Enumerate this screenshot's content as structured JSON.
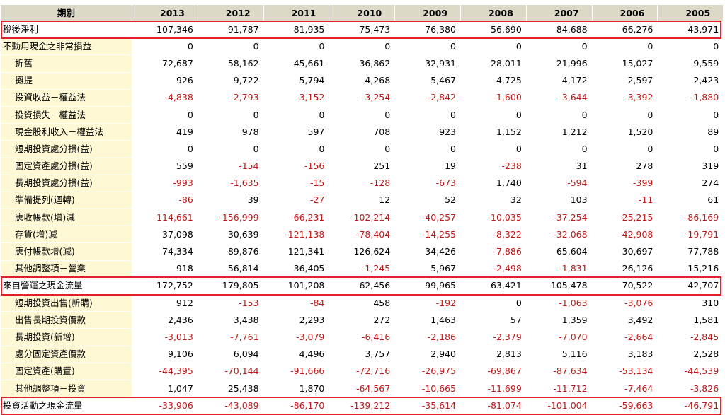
{
  "header": {
    "period_label": "期別",
    "years": [
      "2013",
      "2012",
      "2011",
      "2010",
      "2009",
      "2008",
      "2007",
      "2006",
      "2005"
    ]
  },
  "rows": [
    {
      "label": "稅後淨利",
      "level": "top",
      "highlight": true,
      "values": [
        "107,346",
        "91,787",
        "81,935",
        "75,473",
        "76,380",
        "56,690",
        "84,688",
        "66,276",
        "43,971"
      ]
    },
    {
      "label": "不動用現金之非常損益",
      "level": "top",
      "highlight": false,
      "values": [
        "0",
        "0",
        "0",
        "0",
        "0",
        "0",
        "0",
        "0",
        "0"
      ]
    },
    {
      "label": "折舊",
      "level": "sub",
      "highlight": false,
      "values": [
        "72,687",
        "58,162",
        "45,661",
        "36,862",
        "32,931",
        "28,011",
        "21,996",
        "15,027",
        "9,559"
      ]
    },
    {
      "label": "攤提",
      "level": "sub",
      "highlight": false,
      "values": [
        "926",
        "9,722",
        "5,794",
        "4,268",
        "5,467",
        "4,725",
        "4,172",
        "2,597",
        "2,423"
      ]
    },
    {
      "label": "投資收益－權益法",
      "level": "sub",
      "highlight": false,
      "values": [
        "-4,838",
        "-2,793",
        "-3,152",
        "-3,254",
        "-2,842",
        "-1,600",
        "-3,644",
        "-3,392",
        "-1,880"
      ]
    },
    {
      "label": "投資損失－權益法",
      "level": "sub",
      "highlight": false,
      "values": [
        "0",
        "0",
        "0",
        "0",
        "0",
        "0",
        "0",
        "0",
        "0"
      ]
    },
    {
      "label": "現金股利收入－權益法",
      "level": "sub",
      "highlight": false,
      "values": [
        "419",
        "978",
        "597",
        "708",
        "923",
        "1,152",
        "1,212",
        "1,520",
        "89"
      ]
    },
    {
      "label": "短期投資處分損(益)",
      "level": "sub",
      "highlight": false,
      "values": [
        "0",
        "0",
        "0",
        "0",
        "0",
        "0",
        "0",
        "0",
        "0"
      ]
    },
    {
      "label": "固定資產處分損(益)",
      "level": "sub",
      "highlight": false,
      "values": [
        "559",
        "-154",
        "-156",
        "251",
        "19",
        "-238",
        "31",
        "278",
        "319"
      ]
    },
    {
      "label": "長期投資處分損(益)",
      "level": "sub",
      "highlight": false,
      "values": [
        "-993",
        "-1,635",
        "-15",
        "-128",
        "-673",
        "1,740",
        "-594",
        "-399",
        "274"
      ]
    },
    {
      "label": "準備提列(迴轉)",
      "level": "sub",
      "highlight": false,
      "values": [
        "-86",
        "39",
        "-27",
        "12",
        "52",
        "32",
        "103",
        "-11",
        "61"
      ]
    },
    {
      "label": "應收帳款(增)減",
      "level": "sub",
      "highlight": false,
      "values": [
        "-114,661",
        "-156,999",
        "-66,231",
        "-102,214",
        "-40,257",
        "-10,035",
        "-37,254",
        "-25,215",
        "-86,169"
      ]
    },
    {
      "label": "存貨(增)減",
      "level": "sub",
      "highlight": false,
      "values": [
        "37,098",
        "30,639",
        "-121,138",
        "-78,404",
        "-14,255",
        "-8,322",
        "-32,068",
        "-42,908",
        "-19,791"
      ]
    },
    {
      "label": "應付帳款增(減)",
      "level": "sub",
      "highlight": false,
      "values": [
        "74,334",
        "89,876",
        "121,341",
        "126,624",
        "34,426",
        "-7,886",
        "65,604",
        "30,697",
        "77,788"
      ]
    },
    {
      "label": "其他調整項－營業",
      "level": "sub",
      "highlight": false,
      "values": [
        "918",
        "56,814",
        "36,405",
        "-1,245",
        "5,967",
        "-2,498",
        "-1,831",
        "26,126",
        "15,216"
      ]
    },
    {
      "label": "來自營運之現金流量",
      "level": "top",
      "highlight": true,
      "values": [
        "172,752",
        "179,805",
        "101,208",
        "62,456",
        "99,965",
        "63,421",
        "105,478",
        "70,522",
        "42,707"
      ]
    },
    {
      "label": "短期投資出售(新購)",
      "level": "sub",
      "highlight": false,
      "values": [
        "912",
        "-153",
        "-84",
        "458",
        "-192",
        "0",
        "-1,063",
        "-3,076",
        "310"
      ]
    },
    {
      "label": "出售長期投資價款",
      "level": "sub",
      "highlight": false,
      "values": [
        "2,436",
        "3,438",
        "2,293",
        "272",
        "1,463",
        "57",
        "1,359",
        "3,492",
        "1,581"
      ]
    },
    {
      "label": "長期投資(新增)",
      "level": "sub",
      "highlight": false,
      "values": [
        "-3,013",
        "-7,761",
        "-3,079",
        "-6,416",
        "-2,186",
        "-2,379",
        "-7,070",
        "-2,664",
        "-2,845"
      ]
    },
    {
      "label": "處分固定資產價款",
      "level": "sub",
      "highlight": false,
      "values": [
        "9,106",
        "6,094",
        "4,496",
        "3,757",
        "2,940",
        "2,813",
        "5,116",
        "3,183",
        "2,528"
      ]
    },
    {
      "label": "固定資產(購置)",
      "level": "sub",
      "highlight": false,
      "values": [
        "-44,395",
        "-70,144",
        "-91,666",
        "-72,716",
        "-26,975",
        "-69,867",
        "-87,634",
        "-53,134",
        "-44,539"
      ]
    },
    {
      "label": "其他調整項－投資",
      "level": "sub",
      "highlight": false,
      "values": [
        "1,047",
        "25,438",
        "1,870",
        "-64,567",
        "-10,665",
        "-11,699",
        "-11,712",
        "-7,464",
        "-3,826"
      ]
    },
    {
      "label": "投資活動之現金流量",
      "level": "top",
      "highlight": true,
      "values": [
        "-33,906",
        "-43,089",
        "-86,170",
        "-139,212",
        "-35,614",
        "-81,074",
        "-101,004",
        "-59,663",
        "-46,791"
      ]
    }
  ],
  "colors": {
    "header_bg": "#ddd9c7",
    "label_bg": "#fff8d4",
    "negative_text": "#c01818",
    "highlight_border": "#e3202a"
  }
}
